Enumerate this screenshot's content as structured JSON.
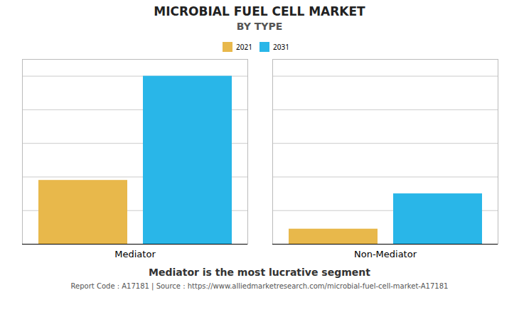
{
  "chart_data": {
    "type": "bar",
    "title": "MICROBIAL FUEL CELL MARKET",
    "subtitle": "BY TYPE",
    "categories": [
      "Mediator",
      "Non-Mediator"
    ],
    "series": [
      {
        "name": "2021",
        "color": "#E8B84B",
        "values": [
          38,
          9
        ]
      },
      {
        "name": "2031",
        "color": "#29B6E8",
        "values": [
          100,
          30
        ]
      }
    ],
    "ylim": [
      0,
      110
    ],
    "yticks": [
      0,
      20,
      40,
      60,
      80,
      100
    ],
    "grid": true,
    "legend": "top",
    "tick_labels": "x",
    "caption": "Mediator is the most lucrative segment",
    "footer": "Report Code : A17181  |  Source : https://www.alliedmarketresearch.com/microbial-fuel-cell-market-A17181"
  }
}
